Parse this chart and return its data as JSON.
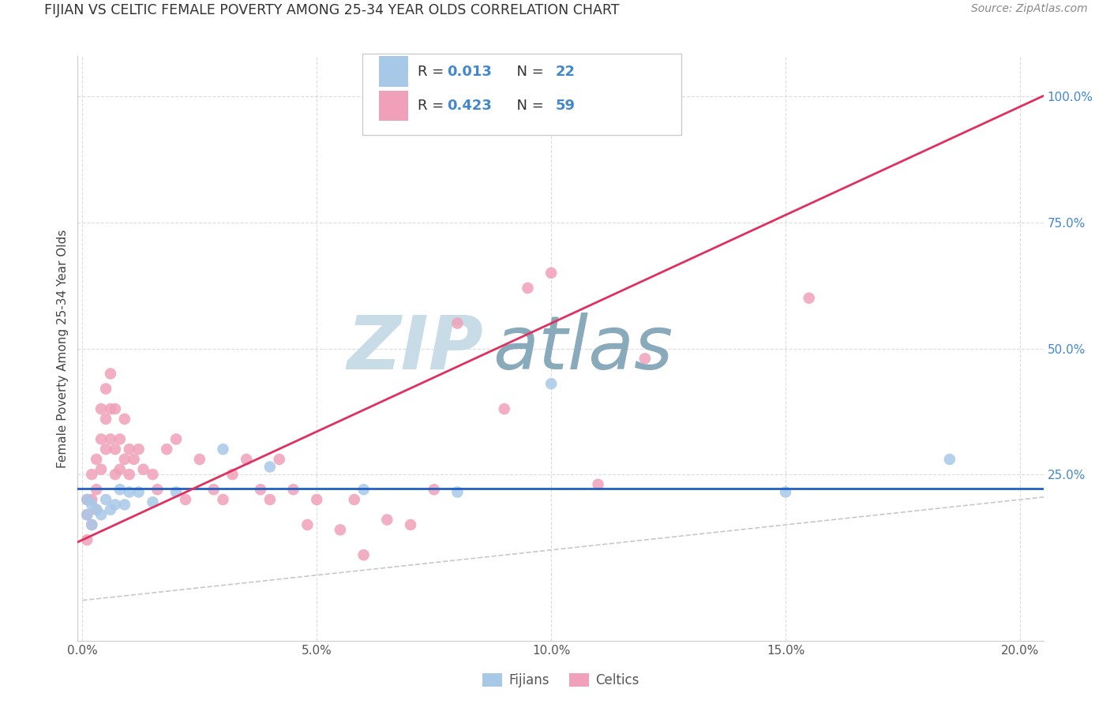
{
  "title": "FIJIAN VS CELTIC FEMALE POVERTY AMONG 25-34 YEAR OLDS CORRELATION CHART",
  "source": "Source: ZipAtlas.com",
  "ylabel": "Female Poverty Among 25-34 Year Olds",
  "xlim": [
    -0.001,
    0.205
  ],
  "ylim": [
    -0.08,
    1.08
  ],
  "yticks": [
    0.25,
    0.5,
    0.75,
    1.0
  ],
  "xticks": [
    0.0,
    0.05,
    0.1,
    0.15,
    0.2
  ],
  "fijians_R": 0.013,
  "fijians_N": 22,
  "celtics_R": 0.423,
  "celtics_N": 59,
  "fijian_color": "#A8C8E8",
  "celtic_color": "#F0A0B8",
  "fijian_line_color": "#2060C0",
  "celtic_line_color": "#E03060",
  "ref_line_color": "#C8C8C8",
  "watermark_zip_color": "#C8DCE8",
  "watermark_atlas_color": "#88AABB",
  "background_color": "#FFFFFF",
  "legend_text_color": "#4488CC",
  "legend_edge_color": "#CCCCCC",
  "tick_color_y": "#4488CC",
  "tick_color_x": "#555555",
  "fijians_x": [
    0.001,
    0.001,
    0.002,
    0.002,
    0.003,
    0.004,
    0.005,
    0.006,
    0.007,
    0.008,
    0.009,
    0.01,
    0.012,
    0.015,
    0.02,
    0.03,
    0.04,
    0.06,
    0.08,
    0.1,
    0.15,
    0.185
  ],
  "fijians_y": [
    0.2,
    0.17,
    0.19,
    0.15,
    0.18,
    0.17,
    0.2,
    0.18,
    0.19,
    0.22,
    0.19,
    0.215,
    0.215,
    0.195,
    0.215,
    0.3,
    0.265,
    0.22,
    0.215,
    0.43,
    0.215,
    0.28
  ],
  "celtics_x": [
    0.001,
    0.001,
    0.001,
    0.002,
    0.002,
    0.002,
    0.003,
    0.003,
    0.003,
    0.004,
    0.004,
    0.004,
    0.005,
    0.005,
    0.005,
    0.006,
    0.006,
    0.006,
    0.007,
    0.007,
    0.007,
    0.008,
    0.008,
    0.009,
    0.009,
    0.01,
    0.01,
    0.011,
    0.012,
    0.013,
    0.015,
    0.016,
    0.018,
    0.02,
    0.022,
    0.025,
    0.028,
    0.03,
    0.032,
    0.035,
    0.038,
    0.04,
    0.042,
    0.045,
    0.048,
    0.05,
    0.055,
    0.058,
    0.06,
    0.065,
    0.07,
    0.075,
    0.08,
    0.09,
    0.095,
    0.1,
    0.11,
    0.12,
    0.155
  ],
  "celtics_y": [
    0.2,
    0.17,
    0.12,
    0.25,
    0.2,
    0.15,
    0.28,
    0.22,
    0.18,
    0.38,
    0.32,
    0.26,
    0.42,
    0.36,
    0.3,
    0.45,
    0.38,
    0.32,
    0.38,
    0.3,
    0.25,
    0.32,
    0.26,
    0.36,
    0.28,
    0.3,
    0.25,
    0.28,
    0.3,
    0.26,
    0.25,
    0.22,
    0.3,
    0.32,
    0.2,
    0.28,
    0.22,
    0.2,
    0.25,
    0.28,
    0.22,
    0.2,
    0.28,
    0.22,
    0.15,
    0.2,
    0.14,
    0.2,
    0.09,
    0.16,
    0.15,
    0.22,
    0.55,
    0.38,
    0.62,
    0.65,
    0.23,
    0.48,
    0.6
  ],
  "fijian_trendline_y0": 0.222,
  "fijian_trendline_y1": 0.222,
  "celtic_trendline_x0": 0.0,
  "celtic_trendline_y0": 0.12,
  "celtic_trendline_x1": 0.1,
  "celtic_trendline_y1": 0.55
}
